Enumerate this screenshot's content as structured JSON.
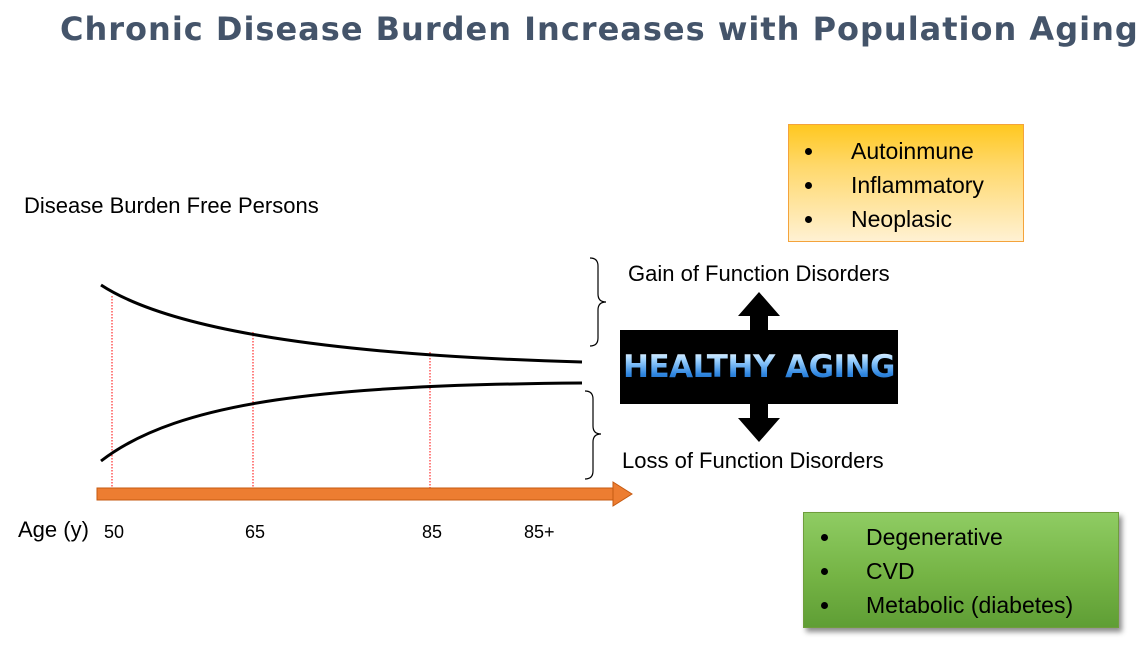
{
  "title": "Chronic Disease Burden Increases with Population Aging",
  "labels": {
    "free_persons": "Disease Burden Free Persons",
    "gain": "Gain of Function Disorders",
    "loss": "Loss of Function Disorders",
    "age_axis": "Age (y)",
    "center": "HEALTHY AGING"
  },
  "age_ticks": [
    "50",
    "65",
    "85",
    "85+"
  ],
  "gain_box": {
    "items": [
      "Autoinmune",
      "Inflammatory",
      "Neoplasic"
    ],
    "color": "#ffc820"
  },
  "loss_box": {
    "items": [
      "Degenerative",
      "CVD",
      "Metabolic (diabetes)"
    ],
    "color": "#75b445"
  },
  "colors": {
    "title": "#44546a",
    "axis_arrow": "#ed7d31",
    "guide_lines": "#ff0000",
    "curves": "#000000"
  },
  "icons": {
    "up_arrow": "up-arrow-icon",
    "down_arrow": "down-arrow-icon"
  }
}
